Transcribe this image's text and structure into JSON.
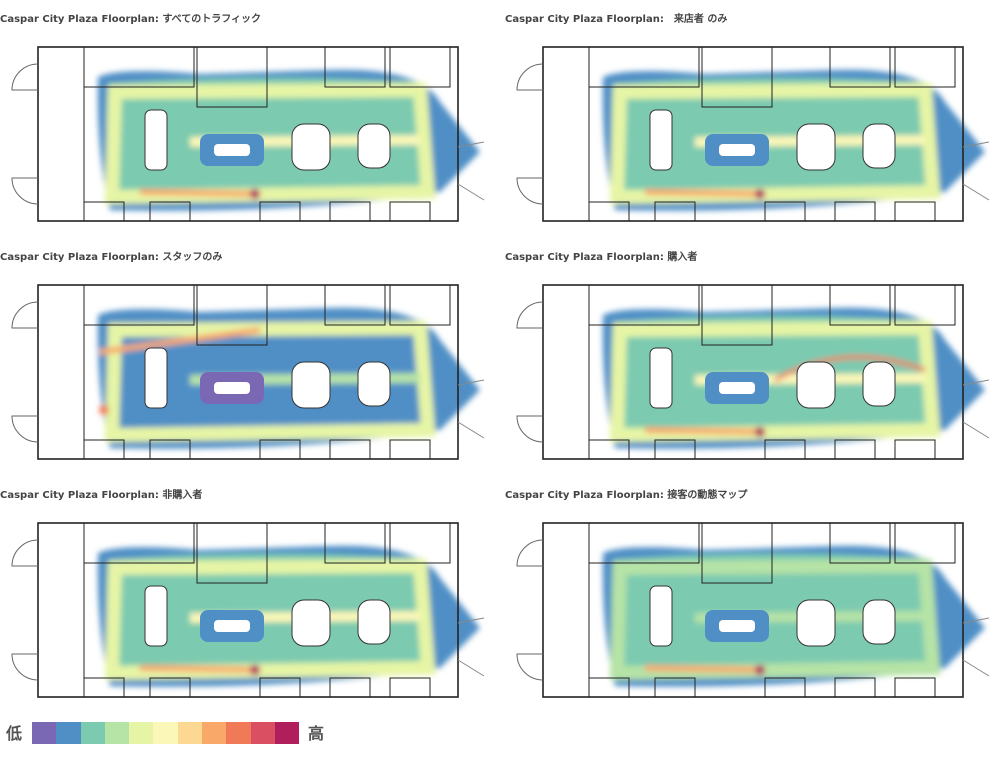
{
  "chart_data": {
    "type": "heatmap",
    "panels": [
      {
        "title": "Caspar City Plaza Floorplan: すべてのトラフィック",
        "variant": "all"
      },
      {
        "title": "Caspar City Plaza Floorplan:　来店者 のみ",
        "variant": "visitors"
      },
      {
        "title": "Caspar City Plaza Floorplan: スタッフのみ",
        "variant": "staff"
      },
      {
        "title": "Caspar City Plaza Floorplan: 購入者",
        "variant": "buyers"
      },
      {
        "title": "Caspar City Plaza Floorplan: 非購入者",
        "variant": "nonbuyers"
      },
      {
        "title": "Caspar City Plaza Floorplan: 接客の動態マップ",
        "variant": "service"
      }
    ],
    "legend": {
      "low": "低",
      "high": "高",
      "colors": [
        "#7b68b5",
        "#4f8fc6",
        "#7ccab0",
        "#b6e3a6",
        "#e6f5a5",
        "#fbf7b8",
        "#fcd893",
        "#f9a86a",
        "#f07a58",
        "#db4f62",
        "#b01f5c"
      ]
    }
  }
}
